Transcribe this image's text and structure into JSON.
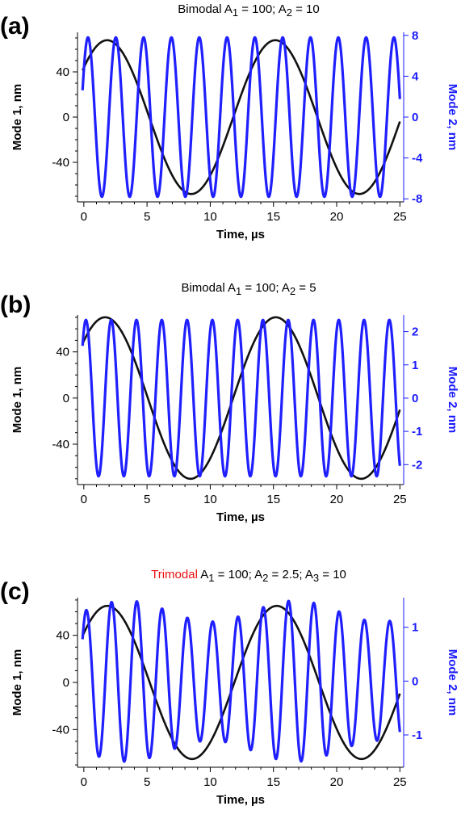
{
  "colors": {
    "mode1": "#111111",
    "mode2": "#1f1fff",
    "right_axis": "#1a1aff",
    "trimodal": "#ee1111"
  },
  "panels": [
    {
      "letter": "(a)",
      "title": {
        "prefix": "",
        "main": "Bimodal A",
        "rest": [
          {
            "sub": "1",
            "text": " = 100; A"
          },
          {
            "sub": "2",
            "text": " = 10"
          }
        ]
      },
      "xlabel": "Time, µs",
      "ylabel_left": "Mode 1, nm",
      "ylabel_right": "Mode 2, nm"
    },
    {
      "letter": "(b)",
      "title": {
        "prefix": "",
        "main": "Bimodal A",
        "rest": [
          {
            "sub": "1",
            "text": " = 100; A"
          },
          {
            "sub": "2",
            "text": " = 5"
          }
        ]
      },
      "xlabel": "Time, µs",
      "ylabel_left": "Mode 1, nm",
      "ylabel_right": "Mode 2, nm"
    },
    {
      "letter": "(c)",
      "title": {
        "prefix": "Trimodal",
        "main": " A",
        "rest": [
          {
            "sub": "1",
            "text": " = 100; A"
          },
          {
            "sub": "2",
            "text": " = 2.5; A"
          },
          {
            "sub": "3",
            "text": " = 10"
          }
        ]
      },
      "xlabel": "Time, µs",
      "ylabel_left": "Mode 1, nm",
      "ylabel_right": "Mode 2, nm"
    }
  ],
  "chart_data": [
    {
      "type": "line",
      "title": "Bimodal A1 = 100; A2 = 10",
      "xlabel": "Time, µs",
      "ylabel": "Mode 1, nm",
      "y2label": "Mode 2, nm",
      "xlim": [
        -0.5,
        25.3
      ],
      "xticks": [
        0,
        5,
        10,
        15,
        20,
        25
      ],
      "xtick_labels": [
        "0",
        "5",
        "10",
        "15",
        "20",
        "25"
      ],
      "ylim": [
        -75,
        75
      ],
      "yticks": [
        -40,
        0,
        40
      ],
      "ytick_labels": [
        "-40",
        "0",
        "40"
      ],
      "y2lim": [
        -8.3,
        8.3
      ],
      "y2ticks": [
        -8,
        -4,
        0,
        4,
        8
      ],
      "y2tick_labels": [
        "-8",
        "-4",
        "0",
        "4",
        "8"
      ],
      "series": [
        {
          "axis": "left",
          "kind": "sine",
          "amplitude": 68,
          "period": 13.3,
          "phase_deg": 40,
          "start": -0.1,
          "end": 25
        },
        {
          "axis": "right",
          "kind": "sine",
          "amplitude": 7.8,
          "period": 2.2,
          "phase_deg": 36,
          "start": -0.1,
          "end": 25
        }
      ]
    },
    {
      "type": "line",
      "title": "Bimodal A1 = 100; A2 = 5",
      "xlabel": "Time, µs",
      "ylabel": "Mode 1, nm",
      "y2label": "Mode 2, nm",
      "xlim": [
        -0.5,
        25.3
      ],
      "xticks": [
        0,
        5,
        10,
        15,
        20,
        25
      ],
      "xtick_labels": [
        "0",
        "5",
        "10",
        "15",
        "20",
        "25"
      ],
      "ylim": [
        -75,
        72
      ],
      "yticks": [
        -40,
        0,
        40
      ],
      "ytick_labels": [
        "-40",
        "0",
        "40"
      ],
      "y2lim": [
        -2.6,
        2.5
      ],
      "y2ticks": [
        -2,
        -1,
        0,
        1,
        2
      ],
      "y2tick_labels": [
        "-2",
        "-1",
        "0",
        "1",
        "2"
      ],
      "series": [
        {
          "axis": "left",
          "kind": "sine",
          "amplitude": 70,
          "period": 13.5,
          "phase_deg": 45,
          "start": -0.1,
          "end": 25
        },
        {
          "axis": "right",
          "kind": "sine",
          "amplitude": 2.35,
          "period": 2.0,
          "phase_deg": 60,
          "start": -0.1,
          "end": 25
        }
      ]
    },
    {
      "type": "line",
      "title": "Trimodal A1 = 100; A2 = 2.5; A3 = 10",
      "xlabel": "Time, µs",
      "ylabel": "Mode 1, nm",
      "y2label": "Mode 2, nm",
      "xlim": [
        -0.5,
        25.3
      ],
      "xticks": [
        0,
        5,
        10,
        15,
        20,
        25
      ],
      "xtick_labels": [
        "0",
        "5",
        "10",
        "15",
        "20",
        "25"
      ],
      "ylim": [
        -72,
        72
      ],
      "yticks": [
        -40,
        0,
        40
      ],
      "ytick_labels": [
        "-40",
        "0",
        "40"
      ],
      "y2lim": [
        -1.6,
        1.55
      ],
      "y2ticks": [
        -1,
        0,
        1
      ],
      "y2tick_labels": [
        "-1",
        "0",
        "1"
      ],
      "series": [
        {
          "axis": "left",
          "kind": "sine",
          "amplitude": 65,
          "period": 13.4,
          "phase_deg": 40,
          "start": -0.1,
          "end": 25
        },
        {
          "axis": "right",
          "kind": "sine",
          "amplitude": 1.3,
          "period": 2.0,
          "phase_deg": 55,
          "start": -0.1,
          "end": 25,
          "modulation": 0.15
        }
      ]
    }
  ]
}
